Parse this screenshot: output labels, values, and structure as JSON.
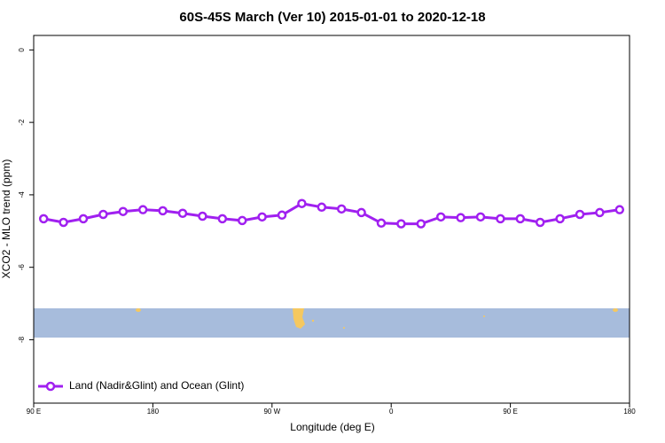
{
  "chart_data": {
    "type": "line",
    "title": "60S-45S March (Ver 10)   2015-01-01 to 2020-12-18",
    "x_label": "Longitude (deg E)",
    "y_label": "XCO2 - MLO trend (ppm)",
    "x": [
      97.5,
      112.5,
      127.5,
      142.5,
      157.5,
      172.5,
      187.5,
      202.5,
      217.5,
      232.5,
      247.5,
      262.5,
      277.5,
      292.5,
      307.5,
      322.5,
      337.5,
      352.5,
      367.5,
      382.5,
      397.5,
      412.5,
      427.5,
      442.5,
      457.5,
      472.5,
      487.5,
      502.5,
      517.5,
      532.5
    ],
    "series": [
      {
        "name": "Land (Nadir&Glint) and Ocean (Glint)",
        "color": "#a020f0",
        "values": [
          -4.66,
          -4.76,
          -4.66,
          -4.54,
          -4.46,
          -4.41,
          -4.44,
          -4.51,
          -4.59,
          -4.66,
          -4.71,
          -4.61,
          -4.56,
          -4.24,
          -4.34,
          -4.39,
          -4.49,
          -4.78,
          -4.8,
          -4.8,
          -4.61,
          -4.63,
          -4.61,
          -4.66,
          -4.66,
          -4.76,
          -4.66,
          -4.54,
          -4.49,
          -4.41
        ]
      }
    ],
    "xlim": [
      90,
      540
    ],
    "xticks": [
      {
        "value": 90,
        "label": "90 E"
      },
      {
        "value": 180,
        "label": "180"
      },
      {
        "value": 270,
        "label": "90 W"
      },
      {
        "value": 360,
        "label": "0"
      },
      {
        "value": 450,
        "label": "90 E"
      },
      {
        "value": 540,
        "label": "180"
      }
    ],
    "ylim": [
      -9.75,
      0.4
    ],
    "yticks": [
      0,
      -2,
      -4,
      -6,
      -8
    ],
    "legend": "bottom-left"
  }
}
